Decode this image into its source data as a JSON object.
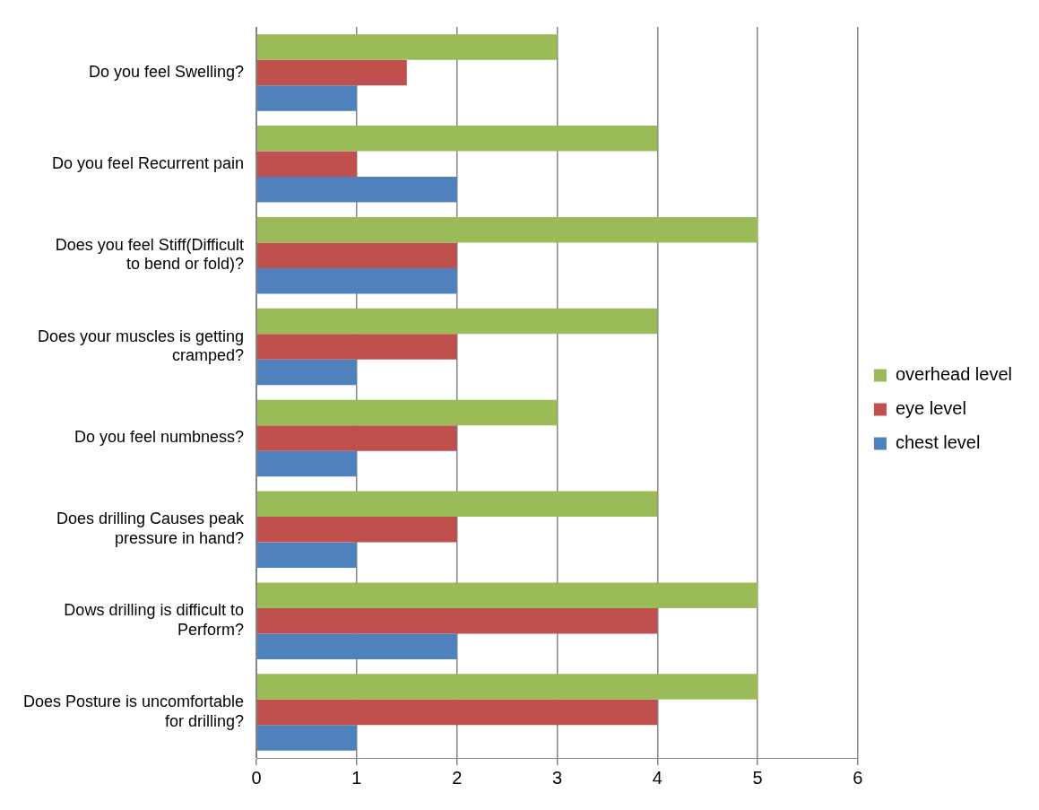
{
  "chart_data": {
    "type": "bar",
    "orientation": "horizontal",
    "categories": [
      "Do you feel Swelling?",
      "Do you feel Recurrent pain",
      "Does you feel Stiff(Difficult to bend or fold)?",
      "Does your muscles is getting cramped?",
      "Do you feel numbness?",
      "Does drilling Causes peak pressure in hand?",
      "Dows drilling is difficult to Perform?",
      "Does Posture is uncomfortable for drilling?"
    ],
    "series": [
      {
        "name": "overhead level",
        "color": "#9bbb59",
        "values": [
          3,
          4,
          5,
          4,
          3,
          4,
          5,
          5
        ]
      },
      {
        "name": "eye level",
        "color": "#c0504d",
        "values": [
          1.5,
          1,
          2,
          2,
          2,
          2,
          4,
          4
        ]
      },
      {
        "name": "chest level",
        "color": "#4f81bd",
        "values": [
          1,
          2,
          2,
          1,
          1,
          1,
          2,
          1
        ]
      }
    ],
    "xlim": [
      0,
      6
    ],
    "xticks": [
      0,
      1,
      2,
      3,
      4,
      5,
      6
    ],
    "grid": "x",
    "legend": "right"
  }
}
